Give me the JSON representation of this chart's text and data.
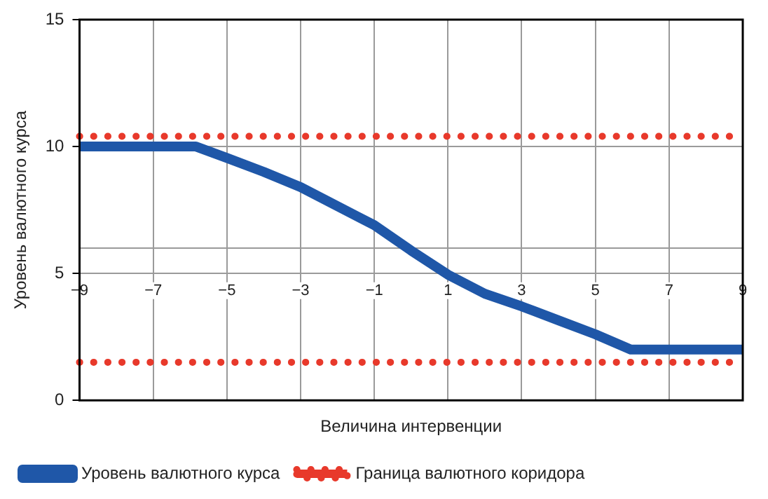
{
  "chart_data": {
    "type": "line",
    "xlabel": "Величина интервенции",
    "ylabel": "Уровень валютного курса",
    "xlim": [
      -9,
      9
    ],
    "xticks": [
      -9,
      -7,
      -5,
      -3,
      -1,
      1,
      3,
      5,
      7,
      9
    ],
    "ylim": [
      0,
      15
    ],
    "yticks": [
      0,
      5,
      10,
      15
    ],
    "grid": true,
    "legend": "bottom",
    "marker": "none",
    "ref_lines": [
      {
        "axis": "y",
        "value": 6,
        "color": "#9a9a9a"
      }
    ],
    "series": [
      {
        "name": "Уровень валютного курса",
        "color": "#1f57a8",
        "line_style": "solid",
        "x": [
          -9,
          -5.84,
          -5,
          -4,
          -3,
          -1,
          0,
          1,
          2,
          3,
          4,
          5,
          5.96,
          9
        ],
        "values": [
          10,
          10,
          9.55,
          9.0,
          8.4,
          6.9,
          5.9,
          4.95,
          4.2,
          3.7,
          3.15,
          2.6,
          2.0,
          2.0
        ]
      },
      {
        "name": "Граница валютного коридора",
        "color": "#e8392b",
        "line_style": "dotted",
        "x": [
          -9,
          9
        ],
        "values": [
          10.4,
          10.4
        ]
      },
      {
        "color": "#e8392b",
        "line_style": "dotted",
        "x": [
          -9,
          9
        ],
        "values": [
          1.5,
          1.5
        ]
      }
    ]
  }
}
